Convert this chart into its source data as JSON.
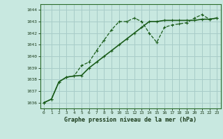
{
  "title": "Graphe pression niveau de la mer (hPa)",
  "bg_color": "#c8e8e0",
  "grid_color": "#a8ccc8",
  "line_color": "#1a5c1a",
  "xlim": [
    -0.5,
    23.5
  ],
  "ylim": [
    1035.5,
    1044.5
  ],
  "yticks": [
    1036,
    1037,
    1038,
    1039,
    1040,
    1041,
    1042,
    1043,
    1044
  ],
  "xticks": [
    0,
    1,
    2,
    3,
    4,
    5,
    6,
    7,
    8,
    9,
    10,
    11,
    12,
    13,
    14,
    15,
    16,
    17,
    18,
    19,
    20,
    21,
    22,
    23
  ],
  "series1_x": [
    0,
    1,
    2,
    3,
    4,
    5,
    6,
    7,
    8,
    9,
    10,
    11,
    12,
    13,
    14,
    15,
    16,
    17,
    18,
    19,
    20,
    21,
    22,
    23
  ],
  "series1_y": [
    1036.0,
    1036.3,
    1037.8,
    1038.2,
    1038.3,
    1038.35,
    1039.0,
    1039.5,
    1040.0,
    1040.5,
    1041.0,
    1041.5,
    1042.0,
    1042.5,
    1043.0,
    1043.0,
    1043.1,
    1043.1,
    1043.1,
    1043.1,
    1043.1,
    1043.2,
    1043.2,
    1043.3
  ],
  "series2_x": [
    0,
    1,
    2,
    3,
    4,
    5,
    6,
    7,
    8,
    9,
    10,
    11,
    12,
    13,
    14,
    15,
    16,
    17,
    18,
    19,
    20,
    21,
    22,
    23
  ],
  "series2_y": [
    1036.0,
    1036.3,
    1037.8,
    1038.2,
    1038.3,
    1039.2,
    1039.5,
    1040.5,
    1041.4,
    1042.3,
    1043.0,
    1043.0,
    1043.3,
    1043.0,
    1042.0,
    1041.2,
    1042.5,
    1042.7,
    1042.8,
    1042.9,
    1043.3,
    1043.6,
    1043.2,
    1043.3
  ]
}
